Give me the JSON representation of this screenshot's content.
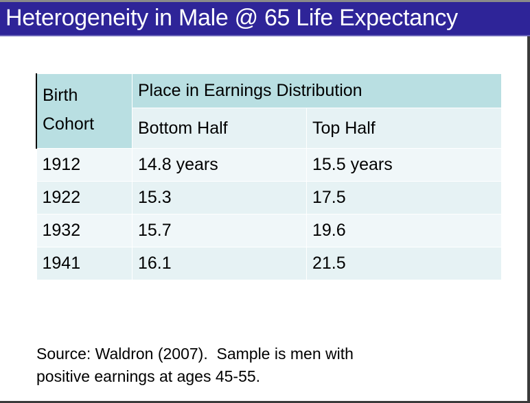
{
  "title": "Heterogeneity in Male @ 65 Life Expectancy",
  "table": {
    "cohort_header": [
      "Birth",
      "Cohort"
    ],
    "group_header": "Place in Earnings Distribution",
    "columns": [
      "Bottom Half",
      "Top Half"
    ],
    "rows": [
      {
        "cohort": "1912",
        "bottom": "14.8 years",
        "top": "15.5 years"
      },
      {
        "cohort": "1922",
        "bottom": "15.3",
        "top": "17.5"
      },
      {
        "cohort": "1932",
        "bottom": "15.7",
        "top": "19.6"
      },
      {
        "cohort": "1941",
        "bottom": "16.1",
        "top": "21.5"
      }
    ]
  },
  "source": [
    "Source: Waldron (2007).  Sample is men with",
    "positive earnings at ages 45-55."
  ]
}
